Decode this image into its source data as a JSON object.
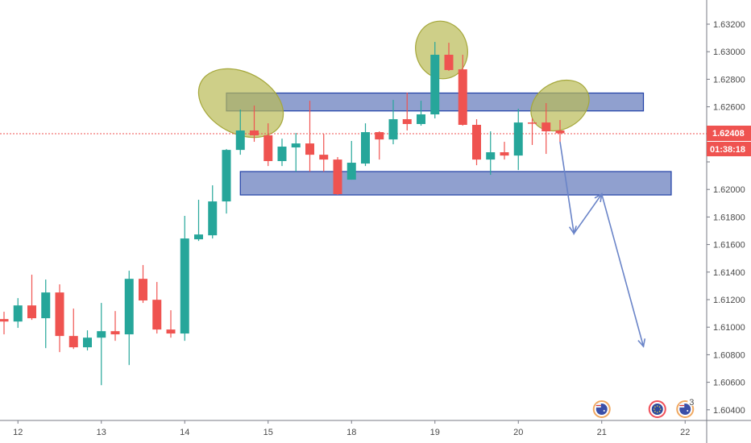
{
  "chart_data": {
    "type": "candlestick",
    "title": "",
    "xlabel": "",
    "ylabel": "",
    "ylim": [
      1.6036,
      1.6336
    ],
    "grid": false,
    "colors": {
      "up": "#26a69a",
      "down": "#ef5350",
      "zone": "#8a9bcc",
      "zone_border": "#1f3fa6",
      "highlight": "#c8c97f",
      "arrow": "#6a84c8"
    },
    "y_ticks": [
      1.632,
      1.63,
      1.628,
      1.626,
      1.624,
      1.622,
      1.62,
      1.618,
      1.616,
      1.614,
      1.612,
      1.61,
      1.608,
      1.606,
      1.604
    ],
    "x_ticks": [
      {
        "bar": 1,
        "label": "12"
      },
      {
        "bar": 7,
        "label": "13"
      },
      {
        "bar": 13,
        "label": "14"
      },
      {
        "bar": 19,
        "label": "15"
      },
      {
        "bar": 25,
        "label": "18"
      },
      {
        "bar": 31,
        "label": "19"
      },
      {
        "bar": 37,
        "label": "20"
      },
      {
        "bar": 43,
        "label": "21"
      },
      {
        "bar": 49,
        "label": "22"
      }
    ],
    "ohlc": [
      [
        1.61059,
        1.61112,
        1.60948,
        1.61041
      ],
      [
        1.61041,
        1.61211,
        1.60995,
        1.61158
      ],
      [
        1.61158,
        1.61381,
        1.61053,
        1.61065
      ],
      [
        1.61065,
        1.61346,
        1.60848,
        1.61252
      ],
      [
        1.61252,
        1.61311,
        1.60819,
        1.60936
      ],
      [
        1.60936,
        1.61135,
        1.60842,
        1.60854
      ],
      [
        1.60854,
        1.60977,
        1.60831,
        1.60924
      ],
      [
        1.60924,
        1.61176,
        1.60579,
        1.60971
      ],
      [
        1.60971,
        1.61117,
        1.60901,
        1.60948
      ],
      [
        1.60948,
        1.6141,
        1.60725,
        1.61351
      ],
      [
        1.61351,
        1.61451,
        1.61176,
        1.61194
      ],
      [
        1.61199,
        1.61328,
        1.60954,
        1.60983
      ],
      [
        1.60983,
        1.61123,
        1.60924,
        1.60954
      ],
      [
        1.60954,
        1.61808,
        1.60901,
        1.61644
      ],
      [
        1.61638,
        1.61925,
        1.61626,
        1.61673
      ],
      [
        1.61667,
        1.6203,
        1.61644,
        1.61913
      ],
      [
        1.61913,
        1.62293,
        1.61825,
        1.62287
      ],
      [
        1.62287,
        1.6258,
        1.62252,
        1.62428
      ],
      [
        1.62428,
        1.62609,
        1.62346,
        1.62393
      ],
      [
        1.62393,
        1.6248,
        1.6217,
        1.62206
      ],
      [
        1.62206,
        1.62369,
        1.6217,
        1.62311
      ],
      [
        1.62305,
        1.6241,
        1.62129,
        1.62334
      ],
      [
        1.62334,
        1.62644,
        1.62129,
        1.62252
      ],
      [
        1.62252,
        1.62404,
        1.62129,
        1.62217
      ],
      [
        1.62217,
        1.62235,
        1.6196,
        1.61966
      ],
      [
        1.62071,
        1.62352,
        1.62071,
        1.62194
      ],
      [
        1.62188,
        1.6248,
        1.6217,
        1.62416
      ],
      [
        1.62416,
        1.62422,
        1.62217,
        1.62363
      ],
      [
        1.62363,
        1.6265,
        1.62328,
        1.6251
      ],
      [
        1.6251,
        1.62703,
        1.62428,
        1.62475
      ],
      [
        1.62475,
        1.62644,
        1.62463,
        1.62545
      ],
      [
        1.62545,
        1.63071,
        1.62516,
        1.62978
      ],
      [
        1.62978,
        1.63065,
        1.62861,
        1.62867
      ],
      [
        1.62872,
        1.62978,
        1.62463,
        1.62469
      ],
      [
        1.62469,
        1.6251,
        1.62176,
        1.62217
      ],
      [
        1.62217,
        1.62422,
        1.62106,
        1.6227
      ],
      [
        1.6227,
        1.62346,
        1.62217,
        1.62246
      ],
      [
        1.62246,
        1.62586,
        1.62141,
        1.62486
      ],
      [
        1.62486,
        1.62516,
        1.62323,
        1.6248
      ],
      [
        1.62486,
        1.62627,
        1.62258,
        1.62422
      ],
      [
        1.62428,
        1.62504,
        1.62346,
        1.62408
      ]
    ],
    "current_price": 1.62408,
    "current_price_label": "1.62408",
    "countdown": "01:38:18",
    "zones": [
      {
        "name": "resistance-zone",
        "top": 1.627,
        "bottom": 1.6257,
        "from_bar": 16,
        "to_bar": 46
      },
      {
        "name": "support-zone",
        "top": 1.6213,
        "bottom": 1.6196,
        "from_bar": 17,
        "to_bar": 48
      }
    ],
    "projection_path": [
      [
        40,
        1.62346
      ],
      [
        41,
        1.6168
      ],
      [
        43,
        1.61966
      ],
      [
        46,
        1.6086
      ]
    ],
    "events": [
      {
        "bar": 43,
        "country": "AU",
        "count": ""
      },
      {
        "bar": 47,
        "country": "EU",
        "count": ""
      },
      {
        "bar": 49,
        "country": "AU",
        "count": "3"
      }
    ]
  }
}
